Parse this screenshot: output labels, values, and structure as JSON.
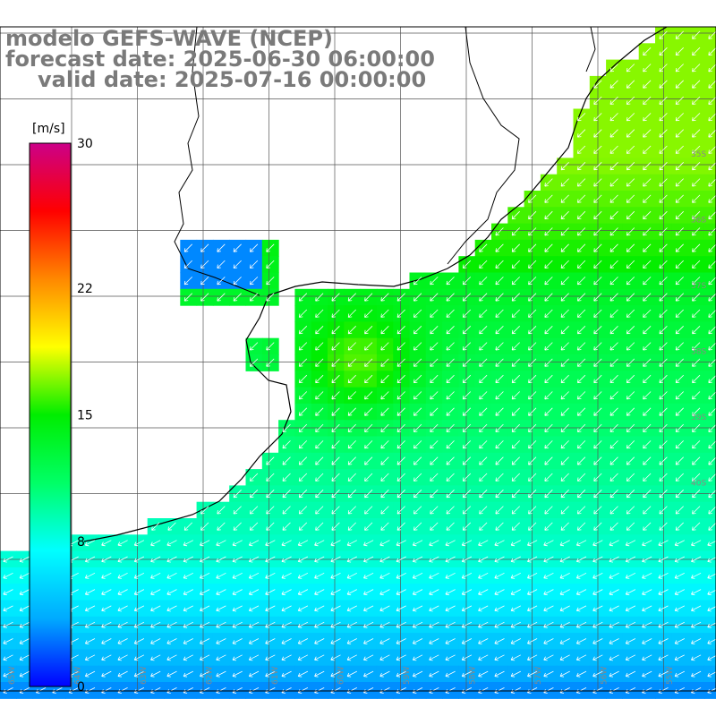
{
  "title": {
    "line1": "modelo GEFS-WAVE (NCEP)",
    "line2": "forecast date: 2025-06-30 06:00:00",
    "line3": "valid date: 2025-07-16 00:00:00"
  },
  "colorbar": {
    "unit": "[m/s]",
    "min": 0,
    "max": 30,
    "ticks": [
      {
        "value": 30,
        "label": "30"
      },
      {
        "value": 22,
        "label": "22"
      },
      {
        "value": 15,
        "label": "15"
      },
      {
        "value": 8,
        "label": "8"
      },
      {
        "value": 0,
        "label": "0"
      }
    ],
    "colors": [
      "#0000ff",
      "#00aaff",
      "#00ffff",
      "#00ff66",
      "#00ee00",
      "#ffff00",
      "#ff8800",
      "#ff0000",
      "#cc0088"
    ]
  },
  "lat_labels": [
    "35S",
    "36S",
    "37S",
    "38S",
    "39S",
    "40S"
  ],
  "lon_labels": [
    "65W",
    "64W",
    "63W",
    "62W",
    "61W",
    "60W",
    "59W",
    "58W",
    "57W",
    "56W",
    "55W"
  ],
  "colors": {
    "land": "#ffffff",
    "grid": "#555555",
    "coast": "#000000",
    "arrow": "#ffffff",
    "title_text": "#7a7a7a"
  }
}
